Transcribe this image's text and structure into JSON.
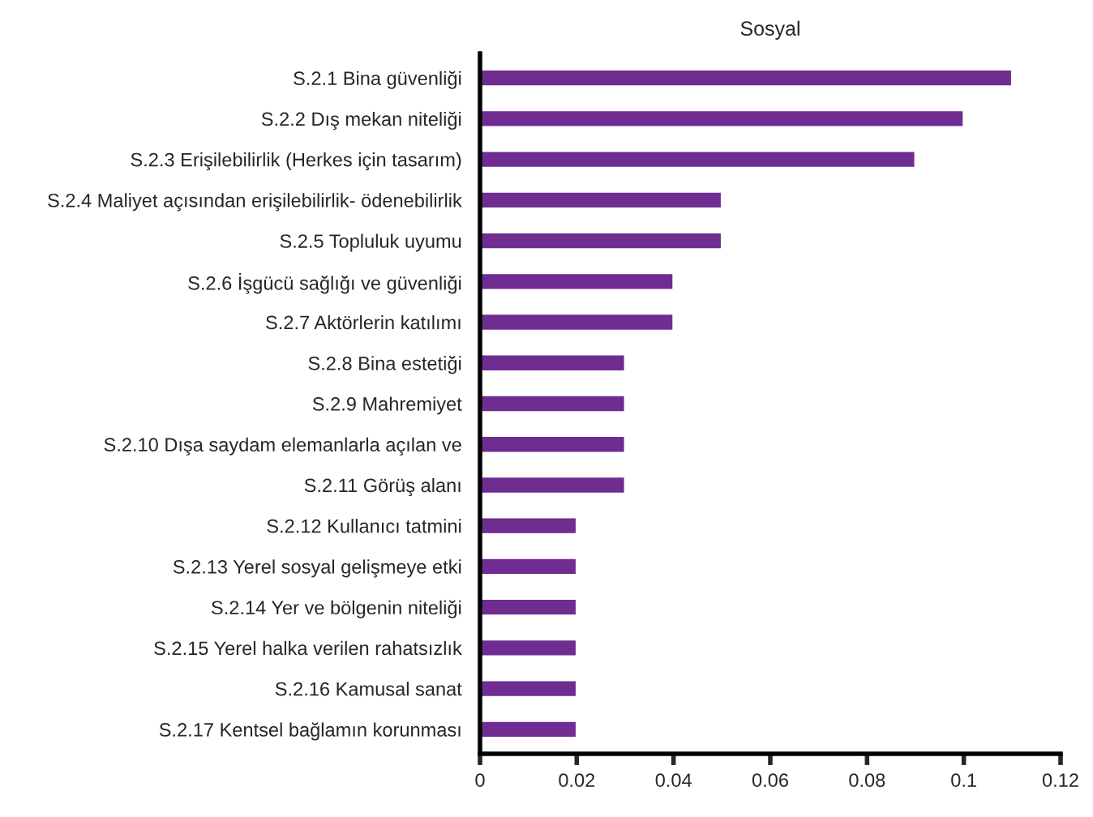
{
  "chart_data": {
    "type": "bar",
    "orientation": "horizontal",
    "title": "Sosyal",
    "categories": [
      "S.2.1 Bina güvenliği",
      "S.2.2 Dış mekan niteliği",
      "S.2.3 Erişilebilirlik (Herkes için tasarım)",
      "S.2.4 Maliyet açısından erişilebilirlik- ödenebilirlik",
      "S.2.5 Topluluk uyumu",
      "S.2.6 İşgücü sağlığı ve güvenliği",
      "S.2.7 Aktörlerin katılımı",
      "S.2.8 Bina estetiği",
      "S.2.9 Mahremiyet",
      "S.2.10 Dışa saydam elemanlarla açılan ve",
      "S.2.11 Görüş alanı",
      "S.2.12 Kullanıcı tatmini",
      "S.2.13 Yerel sosyal gelişmeye etki",
      "S.2.14 Yer ve bölgenin niteliği",
      "S.2.15 Yerel halka verilen rahatsızlık",
      "S.2.16 Kamusal sanat",
      "S.2.17 Kentsel bağlamın korunması"
    ],
    "values": [
      0.11,
      0.1,
      0.09,
      0.05,
      0.05,
      0.04,
      0.04,
      0.03,
      0.03,
      0.03,
      0.03,
      0.02,
      0.02,
      0.02,
      0.02,
      0.02,
      0.02
    ],
    "color": "#6f2c91",
    "xlim": [
      0,
      0.12
    ],
    "xticks": [
      0,
      0.02,
      0.04,
      0.06,
      0.08,
      0.1,
      0.12
    ],
    "grid": false,
    "legend": false
  }
}
